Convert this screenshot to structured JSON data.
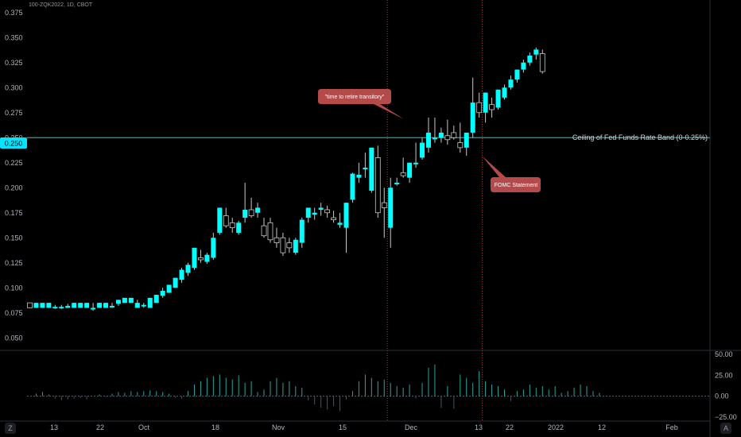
{
  "header": {
    "symbol": "100-ZQK2022, 1D, CBOT"
  },
  "colors": {
    "up": "#00ffff",
    "down": "#000000",
    "candle_edge": "#c8c8c8",
    "ref_line": "#26a69a",
    "annotation": "#b54a4a",
    "vline": "#a23a3a",
    "osc": "#26a69a",
    "osc_neg": "#44546a",
    "axis_text": "#b2b5be",
    "price_tag": "#00e5ff"
  },
  "reference_line": {
    "value": 0.25,
    "label": "Ceiling of Fed Funds Rate Band (0-0.25%)",
    "price_tag": "0.250"
  },
  "annotations": [
    {
      "text": "\"time to retire transitory\""
    },
    {
      "text": "FOMC Statement"
    }
  ],
  "controls": {
    "left_corner": "Z",
    "right_corner": "A"
  },
  "chart_data": [
    {
      "type": "candlestick",
      "y_axis_ticks": [
        "0.375",
        "0.350",
        "0.325",
        "0.300",
        "0.275",
        "0.250",
        "0.225",
        "0.200",
        "0.175",
        "0.150",
        "0.125",
        "0.100",
        "0.075",
        "0.050"
      ],
      "x_axis_ticks": [
        "13",
        "22",
        "Oct",
        "18",
        "Nov",
        "15",
        "Dec",
        "13",
        "22",
        "2022",
        "12",
        "Feb"
      ],
      "ylim": [
        0.0375,
        0.3875
      ],
      "candles": [
        {
          "o": 0.085,
          "h": 0.085,
          "l": 0.08,
          "c": 0.08
        },
        {
          "o": 0.08,
          "h": 0.085,
          "l": 0.08,
          "c": 0.085
        },
        {
          "o": 0.08,
          "h": 0.085,
          "l": 0.08,
          "c": 0.085
        },
        {
          "o": 0.08,
          "h": 0.085,
          "l": 0.08,
          "c": 0.085
        },
        {
          "o": 0.08,
          "h": 0.083,
          "l": 0.079,
          "c": 0.081
        },
        {
          "o": 0.08,
          "h": 0.083,
          "l": 0.079,
          "c": 0.081
        },
        {
          "o": 0.08,
          "h": 0.084,
          "l": 0.08,
          "c": 0.082
        },
        {
          "o": 0.08,
          "h": 0.085,
          "l": 0.08,
          "c": 0.085
        },
        {
          "o": 0.08,
          "h": 0.085,
          "l": 0.08,
          "c": 0.085
        },
        {
          "o": 0.08,
          "h": 0.085,
          "l": 0.08,
          "c": 0.085
        },
        {
          "o": 0.08,
          "h": 0.085,
          "l": 0.077,
          "c": 0.08
        },
        {
          "o": 0.08,
          "h": 0.085,
          "l": 0.08,
          "c": 0.085
        },
        {
          "o": 0.08,
          "h": 0.085,
          "l": 0.08,
          "c": 0.085
        },
        {
          "o": 0.082,
          "h": 0.085,
          "l": 0.08,
          "c": 0.082
        },
        {
          "o": 0.084,
          "h": 0.088,
          "l": 0.082,
          "c": 0.088
        },
        {
          "o": 0.085,
          "h": 0.09,
          "l": 0.085,
          "c": 0.09
        },
        {
          "o": 0.085,
          "h": 0.09,
          "l": 0.085,
          "c": 0.09
        },
        {
          "o": 0.08,
          "h": 0.088,
          "l": 0.08,
          "c": 0.085
        },
        {
          "o": 0.082,
          "h": 0.085,
          "l": 0.08,
          "c": 0.083
        },
        {
          "o": 0.08,
          "h": 0.09,
          "l": 0.08,
          "c": 0.09
        },
        {
          "o": 0.085,
          "h": 0.093,
          "l": 0.085,
          "c": 0.093
        },
        {
          "o": 0.092,
          "h": 0.1,
          "l": 0.09,
          "c": 0.097
        },
        {
          "o": 0.095,
          "h": 0.103,
          "l": 0.095,
          "c": 0.103
        },
        {
          "o": 0.1,
          "h": 0.11,
          "l": 0.1,
          "c": 0.11
        },
        {
          "o": 0.108,
          "h": 0.12,
          "l": 0.105,
          "c": 0.118
        },
        {
          "o": 0.115,
          "h": 0.125,
          "l": 0.112,
          "c": 0.123
        },
        {
          "o": 0.12,
          "h": 0.14,
          "l": 0.118,
          "c": 0.14
        },
        {
          "o": 0.13,
          "h": 0.138,
          "l": 0.125,
          "c": 0.128
        },
        {
          "o": 0.126,
          "h": 0.135,
          "l": 0.124,
          "c": 0.133
        },
        {
          "o": 0.13,
          "h": 0.155,
          "l": 0.128,
          "c": 0.15
        },
        {
          "o": 0.155,
          "h": 0.18,
          "l": 0.153,
          "c": 0.18
        },
        {
          "o": 0.172,
          "h": 0.18,
          "l": 0.16,
          "c": 0.162
        },
        {
          "o": 0.165,
          "h": 0.17,
          "l": 0.155,
          "c": 0.16
        },
        {
          "o": 0.155,
          "h": 0.167,
          "l": 0.153,
          "c": 0.165
        },
        {
          "o": 0.17,
          "h": 0.205,
          "l": 0.165,
          "c": 0.178
        },
        {
          "o": 0.178,
          "h": 0.19,
          "l": 0.17,
          "c": 0.172
        },
        {
          "o": 0.175,
          "h": 0.185,
          "l": 0.17,
          "c": 0.18
        },
        {
          "o": 0.162,
          "h": 0.17,
          "l": 0.15,
          "c": 0.152
        },
        {
          "o": 0.165,
          "h": 0.17,
          "l": 0.145,
          "c": 0.148
        },
        {
          "o": 0.15,
          "h": 0.16,
          "l": 0.14,
          "c": 0.145
        },
        {
          "o": 0.15,
          "h": 0.155,
          "l": 0.132,
          "c": 0.135
        },
        {
          "o": 0.145,
          "h": 0.15,
          "l": 0.135,
          "c": 0.14
        },
        {
          "o": 0.135,
          "h": 0.15,
          "l": 0.133,
          "c": 0.148
        },
        {
          "o": 0.145,
          "h": 0.17,
          "l": 0.14,
          "c": 0.168
        },
        {
          "o": 0.17,
          "h": 0.18,
          "l": 0.165,
          "c": 0.18
        },
        {
          "o": 0.173,
          "h": 0.18,
          "l": 0.168,
          "c": 0.175
        },
        {
          "o": 0.178,
          "h": 0.185,
          "l": 0.172,
          "c": 0.18
        },
        {
          "o": 0.178,
          "h": 0.182,
          "l": 0.17,
          "c": 0.175
        },
        {
          "o": 0.17,
          "h": 0.177,
          "l": 0.165,
          "c": 0.168
        },
        {
          "o": 0.163,
          "h": 0.175,
          "l": 0.16,
          "c": 0.165
        },
        {
          "o": 0.16,
          "h": 0.185,
          "l": 0.135,
          "c": 0.185
        },
        {
          "o": 0.188,
          "h": 0.215,
          "l": 0.185,
          "c": 0.214
        },
        {
          "o": 0.21,
          "h": 0.225,
          "l": 0.205,
          "c": 0.213
        },
        {
          "o": 0.22,
          "h": 0.235,
          "l": 0.21,
          "c": 0.22
        },
        {
          "o": 0.197,
          "h": 0.24,
          "l": 0.195,
          "c": 0.24
        },
        {
          "o": 0.23,
          "h": 0.242,
          "l": 0.17,
          "c": 0.175
        },
        {
          "o": 0.185,
          "h": 0.2,
          "l": 0.15,
          "c": 0.18
        },
        {
          "o": 0.16,
          "h": 0.21,
          "l": 0.14,
          "c": 0.2
        },
        {
          "o": 0.205,
          "h": 0.21,
          "l": 0.202,
          "c": 0.205
        },
        {
          "o": 0.215,
          "h": 0.23,
          "l": 0.21,
          "c": 0.212
        },
        {
          "o": 0.21,
          "h": 0.225,
          "l": 0.205,
          "c": 0.225
        },
        {
          "o": 0.225,
          "h": 0.245,
          "l": 0.22,
          "c": 0.225
        },
        {
          "o": 0.23,
          "h": 0.25,
          "l": 0.228,
          "c": 0.245
        },
        {
          "o": 0.24,
          "h": 0.27,
          "l": 0.235,
          "c": 0.255
        },
        {
          "o": 0.25,
          "h": 0.27,
          "l": 0.245,
          "c": 0.25
        },
        {
          "o": 0.25,
          "h": 0.26,
          "l": 0.245,
          "c": 0.255
        },
        {
          "o": 0.252,
          "h": 0.268,
          "l": 0.243,
          "c": 0.248
        },
        {
          "o": 0.255,
          "h": 0.262,
          "l": 0.248,
          "c": 0.25
        },
        {
          "o": 0.245,
          "h": 0.265,
          "l": 0.235,
          "c": 0.24
        },
        {
          "o": 0.24,
          "h": 0.252,
          "l": 0.232,
          "c": 0.255
        },
        {
          "o": 0.255,
          "h": 0.31,
          "l": 0.25,
          "c": 0.285
        },
        {
          "o": 0.285,
          "h": 0.295,
          "l": 0.27,
          "c": 0.275
        },
        {
          "o": 0.275,
          "h": 0.295,
          "l": 0.265,
          "c": 0.295
        },
        {
          "o": 0.283,
          "h": 0.29,
          "l": 0.27,
          "c": 0.278
        },
        {
          "o": 0.28,
          "h": 0.298,
          "l": 0.278,
          "c": 0.298
        },
        {
          "o": 0.29,
          "h": 0.303,
          "l": 0.288,
          "c": 0.3
        },
        {
          "o": 0.3,
          "h": 0.312,
          "l": 0.298,
          "c": 0.308
        },
        {
          "o": 0.308,
          "h": 0.318,
          "l": 0.305,
          "c": 0.318
        },
        {
          "o": 0.318,
          "h": 0.328,
          "l": 0.315,
          "c": 0.325
        },
        {
          "o": 0.325,
          "h": 0.335,
          "l": 0.322,
          "c": 0.332
        },
        {
          "o": 0.333,
          "h": 0.34,
          "l": 0.328,
          "c": 0.338
        },
        {
          "o": 0.334,
          "h": 0.338,
          "l": 0.314,
          "c": 0.316
        }
      ]
    },
    {
      "type": "bar",
      "title": "",
      "y_axis_ticks": [
        "50.00",
        "25.00",
        "0.00",
        "−25.00"
      ],
      "ylim": [
        -30,
        55
      ],
      "values": [
        0,
        3,
        5,
        2,
        -3,
        -5,
        -4,
        -3,
        -2,
        -4,
        0,
        2,
        -1,
        3,
        5,
        4,
        6,
        5,
        6,
        7,
        6,
        5,
        3,
        -2,
        -3,
        6,
        14,
        18,
        22,
        24,
        26,
        22,
        20,
        25,
        16,
        18,
        5,
        8,
        18,
        22,
        16,
        18,
        12,
        10,
        -5,
        -10,
        -14,
        -16,
        -12,
        -18,
        -4,
        6,
        18,
        26,
        22,
        18,
        20,
        16,
        12,
        10,
        14,
        -3,
        16,
        34,
        38,
        -14,
        12,
        -15,
        26,
        22,
        16,
        30,
        18,
        14,
        12,
        8,
        -6,
        6,
        8,
        14,
        10,
        12,
        8,
        12,
        4,
        6,
        10,
        14,
        12,
        6,
        4
      ]
    }
  ]
}
